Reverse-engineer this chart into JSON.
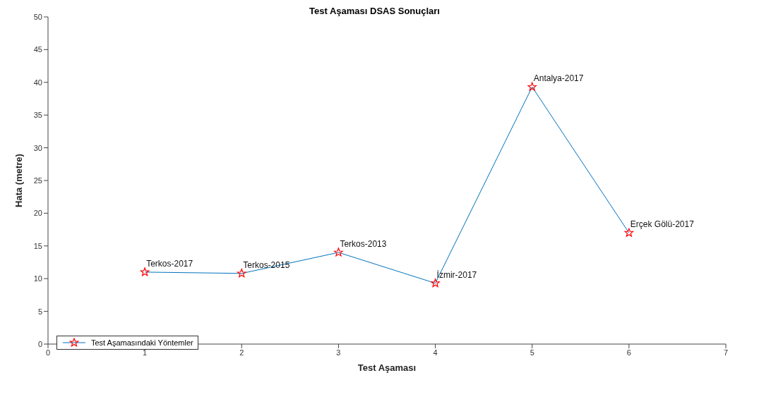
{
  "chart_data": {
    "type": "line",
    "title": "Test Aşaması DSAS Sonuçları",
    "xlabel": "Test Aşaması",
    "ylabel": "Hata (metre)",
    "x": [
      1,
      2,
      3,
      4,
      5,
      6
    ],
    "series": [
      {
        "color": "#0072bd",
        "marker": "none",
        "values": [
          11,
          10.8,
          14,
          9.3,
          39.3,
          17
        ]
      },
      {
        "type": "scatter",
        "name": "Test Aşamasındaki Yöntemler",
        "color": "#ff0000",
        "marker": "star",
        "values": [
          11,
          10.8,
          14,
          9.3,
          39.3,
          17
        ]
      }
    ],
    "xlim": [
      0,
      7
    ],
    "xticks": [
      0,
      1,
      2,
      3,
      4,
      5,
      6,
      7
    ],
    "ylim": [
      0,
      50
    ],
    "yticks": [
      0,
      5,
      10,
      15,
      20,
      25,
      30,
      35,
      40,
      45,
      50
    ],
    "legend": "bottom left",
    "annotations": [
      {
        "text": "Terkos-2017",
        "x": 1,
        "y": 11
      },
      {
        "text": "Terkos-2015",
        "x": 2,
        "y": 10.8
      },
      {
        "text": "Terkos-2013",
        "x": 3,
        "y": 14
      },
      {
        "text": "İzmir-2017",
        "x": 4,
        "y": 9.3
      },
      {
        "text": "Antalya-2017",
        "x": 5,
        "y": 39.3
      },
      {
        "text": "Erçek Gölü-2017",
        "x": 6,
        "y": 17
      }
    ]
  }
}
